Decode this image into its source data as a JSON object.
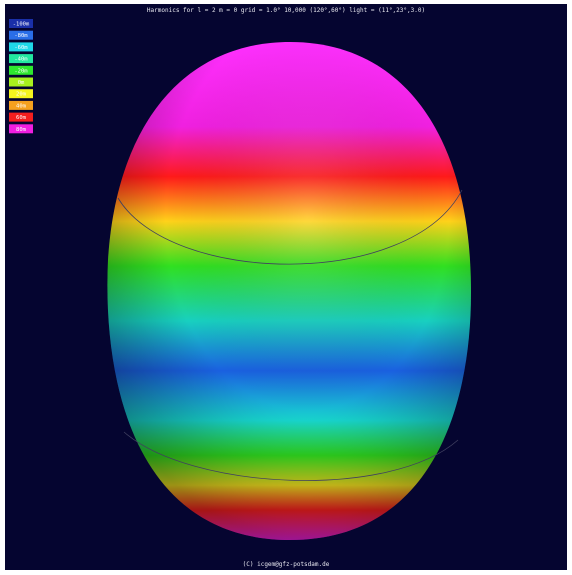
{
  "header": {
    "title": "Harmonics for l = 2 m = 0 grid = 1.0° 10,000 (120°,60°) light = (11°,23°,3.0)"
  },
  "legend": {
    "items": [
      {
        "label": "-100m",
        "color": "#1a2fa8"
      },
      {
        "label": "-80m",
        "color": "#2a6ee8"
      },
      {
        "label": "-60m",
        "color": "#1fd8e8"
      },
      {
        "label": "-40m",
        "color": "#22e8a0"
      },
      {
        "label": "-20m",
        "color": "#2ee82e"
      },
      {
        "label": "0m",
        "color": "#a8f01e"
      },
      {
        "label": "20m",
        "color": "#f5f51e"
      },
      {
        "label": "40m",
        "color": "#f5a01e"
      },
      {
        "label": "60m",
        "color": "#f51e1e"
      },
      {
        "label": "80m",
        "color": "#f01ee0"
      }
    ]
  },
  "footer": {
    "text": "(C) icgem@gfz-potsdam.de"
  }
}
